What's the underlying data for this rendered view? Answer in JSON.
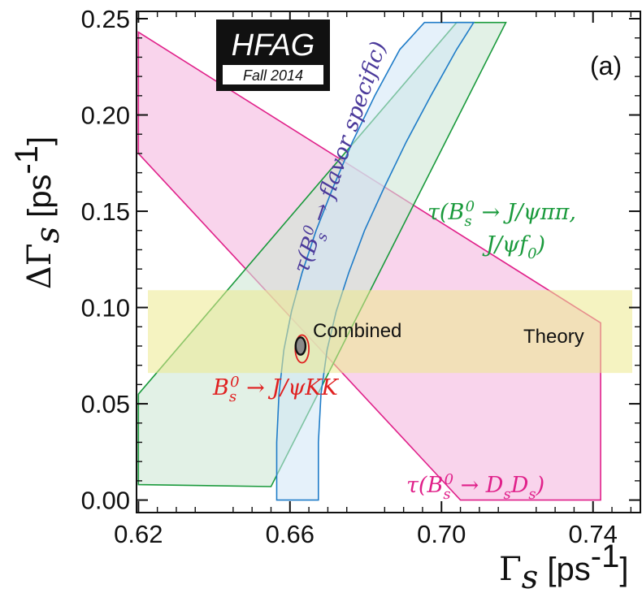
{
  "chart_data": {
    "type": "contour-bands",
    "title": "",
    "xlabel": "Γs [ps-1]",
    "ylabel": "ΔΓs [ps-1]",
    "xlim": [
      0.6195,
      0.7525
    ],
    "ylim": [
      -0.0065,
      0.2538
    ],
    "x_ticks": [
      "0.62",
      "0.66",
      "0.70",
      "0.74"
    ],
    "y_ticks": [
      "0.00",
      "0.05",
      "0.10",
      "0.15",
      "0.20",
      "0.25"
    ],
    "badge": {
      "title": "HFAG",
      "subtitle": "Fall 2014"
    },
    "panel_label": "(a)",
    "bands": [
      {
        "label": "τ(Bs0 → DsDs)",
        "color": "#e0218a",
        "fill": "#f7c6e6",
        "polygon": [
          [
            0.62,
            0.243
          ],
          [
            0.742,
            0.092
          ],
          [
            0.742,
            0.0
          ],
          [
            0.705,
            0.0
          ],
          [
            0.62,
            0.18
          ]
        ]
      },
      {
        "label": "τ(Bs0 → J/ψππ, J/ψf0)",
        "color": "#1a9a3c",
        "fill": "#cfe8d6",
        "polygon": [
          [
            0.62,
            0.008
          ],
          [
            0.62,
            0.055
          ],
          [
            0.704,
            0.248
          ],
          [
            0.717,
            0.248
          ],
          [
            0.655,
            0.007
          ]
        ]
      },
      {
        "label": "τ(Bs0 → flavor specific)",
        "color": "#1f7cc8",
        "fill": "#cfe6f6",
        "upper": [
          [
            0.6565,
            0.0
          ],
          [
            0.6565,
            0.03
          ],
          [
            0.6571,
            0.055
          ],
          [
            0.6584,
            0.078
          ],
          [
            0.6604,
            0.098
          ],
          [
            0.6632,
            0.118
          ],
          [
            0.6669,
            0.14
          ],
          [
            0.6713,
            0.162
          ],
          [
            0.6765,
            0.186
          ],
          [
            0.6824,
            0.21
          ],
          [
            0.689,
            0.234
          ],
          [
            0.6955,
            0.248
          ]
        ],
        "lower": [
          [
            0.6675,
            0.0
          ],
          [
            0.6675,
            0.03
          ],
          [
            0.6682,
            0.055
          ],
          [
            0.6698,
            0.078
          ],
          [
            0.6722,
            0.098
          ],
          [
            0.6755,
            0.118
          ],
          [
            0.6797,
            0.14
          ],
          [
            0.6848,
            0.162
          ],
          [
            0.6907,
            0.186
          ],
          [
            0.6972,
            0.21
          ],
          [
            0.704,
            0.234
          ],
          [
            0.7085,
            0.248
          ]
        ]
      },
      {
        "label": "Theory",
        "color": "#e6e05a",
        "fill": "#ecea8e",
        "ymin": 0.066,
        "ymax": 0.109
      },
      {
        "label": "Bs0 → J/ψKK",
        "color": "#e02020",
        "center": [
          0.6632,
          0.0785
        ],
        "rx": 0.0018,
        "ry": 0.0072
      },
      {
        "label": "Combined",
        "color": "#111111",
        "fill": "#8a8a8a",
        "center": [
          0.6628,
          0.08
        ],
        "rx": 0.0013,
        "ry": 0.0045
      }
    ],
    "annotations": {
      "flavor": "τ(Bs0 → flavor specific)",
      "jpsipipi_line1": "τ(Bs0 → J/ψππ,",
      "jpsipipi_line2": "J/ψf0)",
      "dsds": "τ(Bs0 → DsDs)",
      "jpsikk": "Bs0 → J/ψKK",
      "combined": "Combined",
      "theory": "Theory"
    }
  }
}
